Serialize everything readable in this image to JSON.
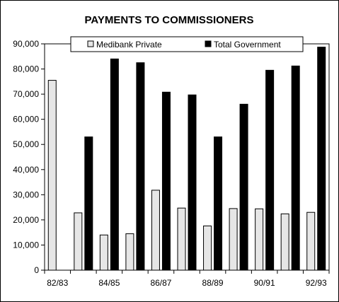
{
  "chart_data": {
    "type": "bar",
    "title": "PAYMENTS TO COMMISSIONERS",
    "xlabel": "",
    "ylabel": "",
    "ylim": [
      0,
      90000
    ],
    "yticks": [
      "0",
      "10,000",
      "20,000",
      "30,000",
      "40,000",
      "50,000",
      "60,000",
      "70,000",
      "80,000",
      "90,000"
    ],
    "ytick_values": [
      0,
      10000,
      20000,
      30000,
      40000,
      50000,
      60000,
      70000,
      80000,
      90000
    ],
    "categories": [
      "82/83",
      "83/84",
      "84/85",
      "85/86",
      "86/87",
      "87/88",
      "88/89",
      "89/90",
      "90/91",
      "91/92",
      "92/93"
    ],
    "category_labels_shown": [
      "82/83",
      "",
      "84/85",
      "",
      "86/87",
      "",
      "88/89",
      "",
      "90/91",
      "",
      "92/93"
    ],
    "legend_position": "top",
    "grid": false,
    "series": [
      {
        "name": "Medibank Private",
        "color": "#e6e6e6",
        "values": [
          75500,
          22800,
          14000,
          14500,
          31800,
          24700,
          17600,
          24500,
          24400,
          22400,
          23000
        ]
      },
      {
        "name": "Total Government",
        "color": "#000000",
        "values": [
          null,
          53000,
          84000,
          82500,
          70800,
          69700,
          53000,
          66000,
          79500,
          81200,
          88700
        ]
      }
    ]
  }
}
